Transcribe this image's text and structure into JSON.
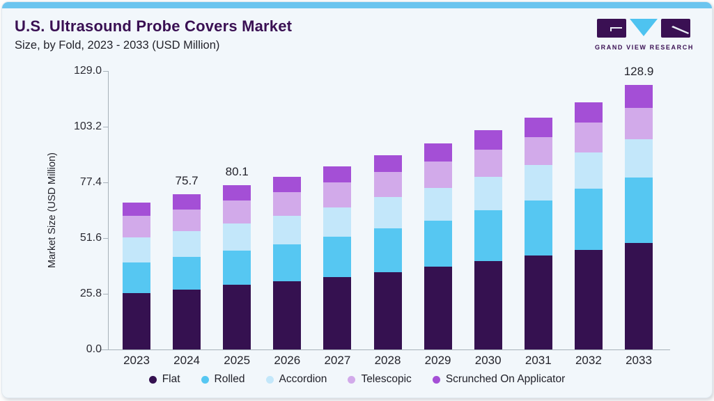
{
  "header": {
    "title": "U.S. Ultrasound Probe Covers Market",
    "subtitle": "Size, by Fold, 2023 - 2033 (USD Million)"
  },
  "logo": {
    "text": "GRAND VIEW RESEARCH"
  },
  "colors": {
    "accent_bar": "#6cc5ef",
    "card_background": "#f2f7fb",
    "title_purple": "#3a1053",
    "axis_line": "#a7b1b9"
  },
  "chart_data": {
    "type": "bar",
    "stacked": true,
    "title": "U.S. Ultrasound Probe Covers Market Size, by Fold, 2023 - 2033 (USD Million)",
    "xlabel": "",
    "ylabel": "Market Size (USD Million)",
    "ylim": [
      0,
      129.0
    ],
    "y_tick_labels": [
      "0.0",
      "25.8",
      "51.6",
      "77.4",
      "103.2",
      "129.0"
    ],
    "grid": false,
    "legend_position": "bottom",
    "categories": [
      "2023",
      "2024",
      "2025",
      "2026",
      "2027",
      "2028",
      "2029",
      "2030",
      "2031",
      "2032",
      "2033"
    ],
    "series": [
      {
        "name": "Flat",
        "color": "#351150",
        "values": [
          27.6,
          29.2,
          31.5,
          33.1,
          35.2,
          37.8,
          40.2,
          42.9,
          45.6,
          48.6,
          52.0
        ]
      },
      {
        "name": "Rolled",
        "color": "#56c7f2",
        "values": [
          14.7,
          16.0,
          16.7,
          18.2,
          19.7,
          21.1,
          22.6,
          25.0,
          27.0,
          29.8,
          31.9
        ]
      },
      {
        "name": "Accordion",
        "color": "#c3e7fa",
        "values": [
          12.4,
          12.5,
          13.0,
          13.9,
          14.1,
          15.2,
          15.7,
          16.1,
          17.2,
          17.7,
          18.4
        ]
      },
      {
        "name": "Telescopic",
        "color": "#d2aaea",
        "values": [
          10.3,
          10.3,
          11.4,
          11.5,
          12.2,
          12.2,
          12.9,
          13.2,
          13.6,
          14.4,
          15.5
        ]
      },
      {
        "name": "Scrunched On Applicator",
        "color": "#a44fd6",
        "values": [
          6.6,
          7.7,
          7.5,
          7.5,
          8.1,
          8.4,
          9.0,
          9.6,
          9.4,
          9.9,
          11.1
        ]
      }
    ],
    "bar_total_labels": [
      "",
      "75.7",
      "80.1",
      "",
      "",
      "",
      "",
      "",
      "",
      "",
      "128.9"
    ],
    "totals": [
      71.6,
      75.7,
      80.1,
      84.2,
      89.3,
      94.7,
      100.4,
      106.8,
      112.8,
      120.4,
      128.9
    ]
  }
}
